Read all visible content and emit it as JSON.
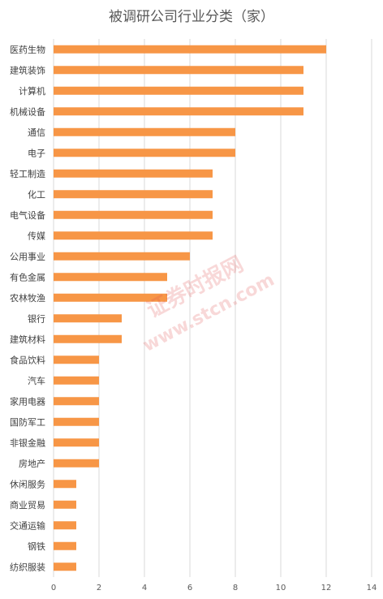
{
  "chart_data": {
    "type": "bar",
    "orientation": "horizontal",
    "title": "被调研公司行业分类（家）",
    "categories": [
      "医药生物",
      "建筑装饰",
      "计算机",
      "机械设备",
      "通信",
      "电子",
      "轻工制造",
      "化工",
      "电气设备",
      "传媒",
      "公用事业",
      "有色金属",
      "农林牧渔",
      "银行",
      "建筑材料",
      "食品饮料",
      "汽车",
      "家用电器",
      "国防军工",
      "非银金融",
      "房地产",
      "休闲服务",
      "商业贸易",
      "交通运输",
      "钢铁",
      "纺织服装"
    ],
    "values": [
      12,
      11,
      11,
      11,
      8,
      8,
      7,
      7,
      7,
      7,
      6,
      5,
      5,
      3,
      3,
      2,
      2,
      2,
      2,
      2,
      2,
      1,
      1,
      1,
      1,
      1
    ],
    "xlim": [
      0,
      14
    ],
    "xticks": [
      "0",
      "2",
      "4",
      "6",
      "8",
      "10",
      "12",
      "14"
    ],
    "grid": true,
    "bar_color": "#f79646"
  },
  "watermark": {
    "line1": "证券时报网",
    "line2": "www.stcn.com"
  }
}
